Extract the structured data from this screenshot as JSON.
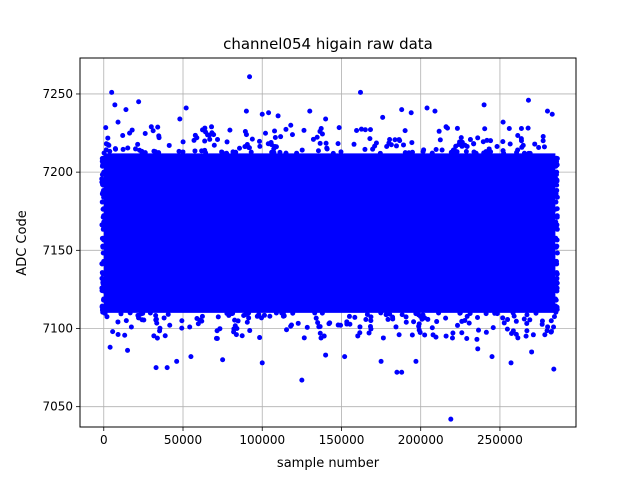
{
  "chart_data": {
    "type": "scatter",
    "title": "channel054 higain raw data",
    "xlabel": "sample number",
    "ylabel": "ADC Code",
    "xlim": [
      -15000,
      298000
    ],
    "ylim": [
      7037,
      7273
    ],
    "x_ticks": [
      0,
      50000,
      100000,
      150000,
      200000,
      250000
    ],
    "x_tick_labels": [
      "0",
      "50000",
      "100000",
      "150000",
      "200000",
      "250000"
    ],
    "y_ticks": [
      7050,
      7100,
      7150,
      7200,
      7250
    ],
    "y_tick_labels": [
      "7050",
      "7100",
      "7150",
      "7200",
      "7250"
    ],
    "grid": true,
    "marker_color": "#0000ff",
    "series": [
      {
        "x_range": [
          0,
          285000
        ],
        "dense_band_y": [
          7110,
          7212
        ],
        "outliers": [
          {
            "x": 5000,
            "y": 7251
          },
          {
            "x": 7000,
            "y": 7243
          },
          {
            "x": 14000,
            "y": 7240
          },
          {
            "x": 22000,
            "y": 7245
          },
          {
            "x": 9000,
            "y": 7232
          },
          {
            "x": 30000,
            "y": 7229
          },
          {
            "x": 48000,
            "y": 7234
          },
          {
            "x": 52000,
            "y": 7241
          },
          {
            "x": 68000,
            "y": 7229
          },
          {
            "x": 92000,
            "y": 7261
          },
          {
            "x": 90000,
            "y": 7239
          },
          {
            "x": 100000,
            "y": 7237
          },
          {
            "x": 104000,
            "y": 7238
          },
          {
            "x": 110000,
            "y": 7236
          },
          {
            "x": 118000,
            "y": 7230
          },
          {
            "x": 130000,
            "y": 7239
          },
          {
            "x": 140000,
            "y": 7234
          },
          {
            "x": 162000,
            "y": 7251
          },
          {
            "x": 176000,
            "y": 7235
          },
          {
            "x": 188000,
            "y": 7240
          },
          {
            "x": 194000,
            "y": 7238
          },
          {
            "x": 204000,
            "y": 7241
          },
          {
            "x": 209000,
            "y": 7239
          },
          {
            "x": 216000,
            "y": 7229
          },
          {
            "x": 240000,
            "y": 7243
          },
          {
            "x": 252000,
            "y": 7232
          },
          {
            "x": 268000,
            "y": 7246
          },
          {
            "x": 280000,
            "y": 7239
          },
          {
            "x": 283000,
            "y": 7237
          },
          {
            "x": 4000,
            "y": 7088
          },
          {
            "x": 15000,
            "y": 7086
          },
          {
            "x": 33000,
            "y": 7075
          },
          {
            "x": 40000,
            "y": 7075
          },
          {
            "x": 46000,
            "y": 7079
          },
          {
            "x": 55000,
            "y": 7082
          },
          {
            "x": 75000,
            "y": 7080
          },
          {
            "x": 100000,
            "y": 7078
          },
          {
            "x": 125000,
            "y": 7067
          },
          {
            "x": 140000,
            "y": 7083
          },
          {
            "x": 152000,
            "y": 7082
          },
          {
            "x": 175000,
            "y": 7079
          },
          {
            "x": 185000,
            "y": 7072
          },
          {
            "x": 188000,
            "y": 7072
          },
          {
            "x": 197000,
            "y": 7079
          },
          {
            "x": 219000,
            "y": 7042
          },
          {
            "x": 236000,
            "y": 7087
          },
          {
            "x": 245000,
            "y": 7082
          },
          {
            "x": 257000,
            "y": 7078
          },
          {
            "x": 270000,
            "y": 7085
          },
          {
            "x": 284000,
            "y": 7074
          }
        ]
      }
    ]
  }
}
